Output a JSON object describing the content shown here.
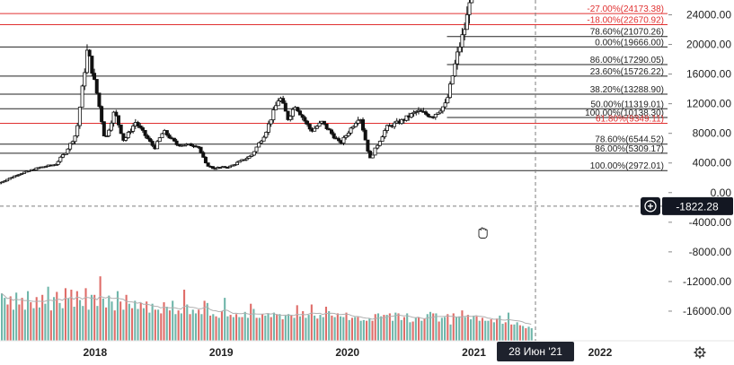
{
  "chart_data": {
    "type": "candlestick",
    "title": "",
    "x_ticks": [
      "2018",
      "2019",
      "2020",
      "2021",
      "2022"
    ],
    "x_range": [
      "2017-04-01",
      "2022-07-15"
    ],
    "y_ticks": [
      "24000.00",
      "20000.00",
      "16000.00",
      "12000.00",
      "8000.00",
      "4000.00",
      "0.00",
      "-4000.00",
      "-8000.00",
      "-12000.00",
      "-16000.00"
    ],
    "y_range": [
      -20000,
      26000
    ],
    "crosshair": {
      "price_label": "-1822.28",
      "date_label": "28 Июн '21",
      "price": -1822.28,
      "date": "2021-06-28"
    },
    "fib_levels": [
      {
        "label": "-27.00%(24173.38)",
        "price": 24173.38,
        "color": "#e03030",
        "start": "2017-04-01"
      },
      {
        "label": "-18.00%(22670.92)",
        "price": 22670.92,
        "color": "#e03030",
        "start": "2017-04-01"
      },
      {
        "label": "78.60%(21070.26)",
        "price": 21070.26,
        "color": "#222222",
        "start": "2020-10-15"
      },
      {
        "label": "0.00%(19666.00)",
        "price": 19666.0,
        "color": "#222222",
        "start": "2017-04-01"
      },
      {
        "label": "86.00%(17290.05)",
        "price": 17290.05,
        "color": "#222222",
        "start": "2020-10-15"
      },
      {
        "label": "23.60%(15726.22)",
        "price": 15726.22,
        "color": "#222222",
        "start": "2017-04-01"
      },
      {
        "label": "38.20%(13288.90)",
        "price": 13288.9,
        "color": "#222222",
        "start": "2017-04-01"
      },
      {
        "label": "50.00%(11319.01)",
        "price": 11319.01,
        "color": "#222222",
        "start": "2017-04-01"
      },
      {
        "label": "100.00%(10138.30)",
        "price": 10138.3,
        "color": "#222222",
        "start": "2020-10-15"
      },
      {
        "label": "61.80%(9349.11)",
        "price": 9349.11,
        "color": "#e03030",
        "start": "2017-04-01"
      },
      {
        "label": "78.60%(6544.52)",
        "price": 6544.52,
        "color": "#222222",
        "start": "2017-04-01"
      },
      {
        "label": "86.00%(5309.17)",
        "price": 5309.17,
        "color": "#222222",
        "start": "2017-04-01"
      },
      {
        "label": "100.00%(2972.01)",
        "price": 2972.01,
        "color": "#222222",
        "start": "2017-04-01"
      }
    ],
    "price_path": [
      [
        "2017-04-01",
        1200
      ],
      [
        "2017-06-01",
        2500
      ],
      [
        "2017-08-01",
        3400
      ],
      [
        "2017-09-15",
        3800
      ],
      [
        "2017-10-15",
        5500
      ],
      [
        "2017-11-15",
        8000
      ],
      [
        "2017-12-17",
        19400
      ],
      [
        "2018-01-15",
        13000
      ],
      [
        "2018-02-06",
        7000
      ],
      [
        "2018-03-05",
        11000
      ],
      [
        "2018-04-01",
        7000
      ],
      [
        "2018-05-05",
        9500
      ],
      [
        "2018-06-29",
        6000
      ],
      [
        "2018-07-25",
        8300
      ],
      [
        "2018-09-01",
        6500
      ],
      [
        "2018-11-01",
        6400
      ],
      [
        "2018-11-25",
        3800
      ],
      [
        "2018-12-15",
        3300
      ],
      [
        "2019-02-01",
        3500
      ],
      [
        "2019-04-05",
        5000
      ],
      [
        "2019-05-15",
        8000
      ],
      [
        "2019-06-26",
        13000
      ],
      [
        "2019-07-20",
        10000
      ],
      [
        "2019-08-10",
        11800
      ],
      [
        "2019-09-25",
        8300
      ],
      [
        "2019-10-26",
        9500
      ],
      [
        "2019-12-18",
        6600
      ],
      [
        "2020-02-13",
        10400
      ],
      [
        "2020-03-13",
        4500
      ],
      [
        "2020-04-30",
        8800
      ],
      [
        "2020-06-10",
        9600
      ],
      [
        "2020-07-28",
        11000
      ],
      [
        "2020-09-10",
        10300
      ],
      [
        "2020-10-20",
        12000
      ],
      [
        "2020-11-20",
        18500
      ],
      [
        "2020-12-17",
        23000
      ],
      [
        "2020-12-28",
        27000
      ]
    ],
    "volume": {
      "baseline_value": -20000,
      "bars": [
        [
          -13600,
          "g"
        ],
        [
          -14200,
          "g"
        ],
        [
          -15100,
          "r"
        ],
        [
          -14000,
          "r"
        ],
        [
          -15800,
          "g"
        ],
        [
          -13500,
          "g"
        ],
        [
          -15100,
          "r"
        ],
        [
          -14200,
          "r"
        ],
        [
          -15800,
          "g"
        ],
        [
          -13300,
          "g"
        ],
        [
          -14800,
          "r"
        ],
        [
          -15600,
          "g"
        ],
        [
          -14100,
          "r"
        ],
        [
          -15500,
          "g"
        ],
        [
          -13800,
          "r"
        ],
        [
          -15000,
          "g"
        ],
        [
          -12700,
          "g"
        ],
        [
          -15900,
          "r"
        ],
        [
          -14100,
          "g"
        ],
        [
          -13400,
          "r"
        ],
        [
          -14900,
          "g"
        ],
        [
          -15600,
          "g"
        ],
        [
          -12900,
          "r"
        ],
        [
          -14300,
          "g"
        ],
        [
          -13100,
          "r"
        ],
        [
          -15400,
          "g"
        ],
        [
          -13300,
          "r"
        ],
        [
          -14500,
          "g"
        ],
        [
          -15300,
          "g"
        ],
        [
          -12900,
          "r"
        ],
        [
          -15800,
          "g"
        ],
        [
          -13800,
          "g"
        ],
        [
          -13800,
          "r"
        ],
        [
          -15300,
          "g"
        ],
        [
          -11300,
          "r"
        ],
        [
          -14300,
          "g"
        ],
        [
          -15500,
          "r"
        ],
        [
          -13900,
          "g"
        ],
        [
          -14700,
          "g"
        ],
        [
          -15900,
          "r"
        ],
        [
          -13300,
          "g"
        ],
        [
          -14700,
          "r"
        ],
        [
          -15800,
          "g"
        ],
        [
          -13800,
          "r"
        ],
        [
          -15000,
          "g"
        ],
        [
          -15600,
          "r"
        ],
        [
          -14600,
          "g"
        ],
        [
          -15700,
          "g"
        ],
        [
          -14900,
          "r"
        ],
        [
          -15600,
          "g"
        ],
        [
          -14700,
          "r"
        ],
        [
          -16200,
          "g"
        ],
        [
          -15000,
          "g"
        ],
        [
          -15800,
          "r"
        ],
        [
          -15800,
          "g"
        ],
        [
          -16300,
          "r"
        ],
        [
          -14800,
          "r"
        ],
        [
          -15400,
          "g"
        ],
        [
          -15900,
          "r"
        ],
        [
          -14600,
          "g"
        ],
        [
          -16400,
          "g"
        ],
        [
          -15900,
          "r"
        ],
        [
          -16300,
          "g"
        ],
        [
          -13100,
          "r"
        ],
        [
          -15100,
          "g"
        ],
        [
          -16400,
          "r"
        ],
        [
          -15800,
          "g"
        ],
        [
          -16300,
          "g"
        ],
        [
          -15800,
          "r"
        ],
        [
          -16400,
          "g"
        ],
        [
          -14600,
          "r"
        ],
        [
          -14900,
          "g"
        ],
        [
          -16600,
          "r"
        ],
        [
          -16400,
          "g"
        ],
        [
          -16700,
          "r"
        ],
        [
          -16900,
          "g"
        ],
        [
          -16000,
          "r"
        ],
        [
          -14200,
          "g"
        ],
        [
          -16700,
          "g"
        ],
        [
          -16500,
          "r"
        ],
        [
          -16800,
          "g"
        ],
        [
          -16400,
          "r"
        ],
        [
          -16800,
          "g"
        ],
        [
          -16800,
          "r"
        ],
        [
          -16100,
          "g"
        ],
        [
          -16900,
          "g"
        ],
        [
          -15000,
          "r"
        ],
        [
          -15700,
          "g"
        ],
        [
          -16900,
          "r"
        ],
        [
          -16900,
          "g"
        ],
        [
          -16400,
          "r"
        ],
        [
          -16600,
          "g"
        ],
        [
          -16300,
          "g"
        ],
        [
          -16800,
          "r"
        ],
        [
          -16200,
          "g"
        ],
        [
          -16400,
          "r"
        ],
        [
          -16400,
          "g"
        ],
        [
          -17100,
          "r"
        ],
        [
          -16600,
          "g"
        ],
        [
          -16400,
          "g"
        ],
        [
          -16600,
          "r"
        ],
        [
          -16900,
          "g"
        ],
        [
          -15200,
          "r"
        ],
        [
          -16700,
          "g"
        ],
        [
          -16000,
          "r"
        ],
        [
          -16900,
          "g"
        ],
        [
          -16500,
          "g"
        ],
        [
          -15100,
          "r"
        ],
        [
          -16600,
          "g"
        ],
        [
          -17000,
          "r"
        ],
        [
          -16500,
          "g"
        ],
        [
          -16800,
          "g"
        ],
        [
          -15400,
          "r"
        ],
        [
          -16000,
          "g"
        ],
        [
          -16600,
          "r"
        ],
        [
          -16800,
          "g"
        ],
        [
          -16300,
          "r"
        ],
        [
          -16700,
          "g"
        ],
        [
          -16800,
          "g"
        ],
        [
          -16200,
          "r"
        ],
        [
          -17200,
          "g"
        ],
        [
          -16900,
          "r"
        ],
        [
          -16800,
          "g"
        ],
        [
          -16800,
          "r"
        ],
        [
          -17300,
          "g"
        ],
        [
          -17200,
          "g"
        ],
        [
          -17300,
          "r"
        ],
        [
          -17000,
          "g"
        ],
        [
          -17300,
          "r"
        ],
        [
          -16400,
          "r"
        ],
        [
          -16300,
          "g"
        ],
        [
          -16700,
          "g"
        ],
        [
          -16500,
          "r"
        ],
        [
          -16500,
          "g"
        ],
        [
          -16300,
          "r"
        ],
        [
          -17300,
          "g"
        ],
        [
          -16200,
          "g"
        ],
        [
          -16300,
          "r"
        ],
        [
          -17200,
          "g"
        ],
        [
          -16800,
          "r"
        ],
        [
          -16300,
          "g"
        ],
        [
          -17500,
          "g"
        ],
        [
          -17400,
          "r"
        ],
        [
          -16900,
          "g"
        ],
        [
          -16800,
          "r"
        ],
        [
          -17300,
          "g"
        ],
        [
          -17000,
          "r"
        ],
        [
          -16400,
          "g"
        ],
        [
          -16100,
          "g"
        ],
        [
          -16300,
          "r"
        ],
        [
          -16300,
          "g"
        ],
        [
          -17400,
          "r"
        ],
        [
          -16900,
          "g"
        ],
        [
          -16800,
          "g"
        ],
        [
          -16400,
          "r"
        ],
        [
          -17800,
          "g"
        ],
        [
          -16300,
          "r"
        ],
        [
          -16800,
          "g"
        ],
        [
          -16700,
          "g"
        ],
        [
          -15900,
          "r"
        ],
        [
          -16800,
          "g"
        ],
        [
          -16500,
          "r"
        ],
        [
          -17100,
          "g"
        ],
        [
          -16600,
          "g"
        ],
        [
          -16700,
          "r"
        ],
        [
          -17300,
          "g"
        ],
        [
          -16900,
          "r"
        ],
        [
          -17300,
          "g"
        ],
        [
          -17300,
          "g"
        ],
        [
          -17100,
          "r"
        ],
        [
          -17500,
          "g"
        ],
        [
          -17000,
          "r"
        ],
        [
          -16600,
          "g"
        ],
        [
          -17700,
          "g"
        ],
        [
          -17500,
          "r"
        ],
        [
          -16200,
          "g"
        ],
        [
          -17800,
          "r"
        ],
        [
          -17800,
          "g"
        ],
        [
          -17500,
          "g"
        ],
        [
          -17900,
          "r"
        ],
        [
          -18000,
          "g"
        ],
        [
          -18300,
          "r"
        ],
        [
          -18100,
          "g"
        ],
        [
          -18300,
          "g"
        ]
      ]
    }
  },
  "colors": {
    "background": "#ffffff",
    "fib_red": "#e03030",
    "fib_black": "#222222",
    "volume_green": "#56a99b",
    "volume_red": "#d9534f",
    "candle": "#111111",
    "axis_text": "#222222",
    "crosshair": "#7f7f7f",
    "date_badge_bg": "#1e222d",
    "price_badge_bg": "#131722"
  },
  "icons": {
    "plus_circle": "plus-circle-icon",
    "settings": "gear-icon",
    "cursor": "hand-cursor-icon"
  }
}
